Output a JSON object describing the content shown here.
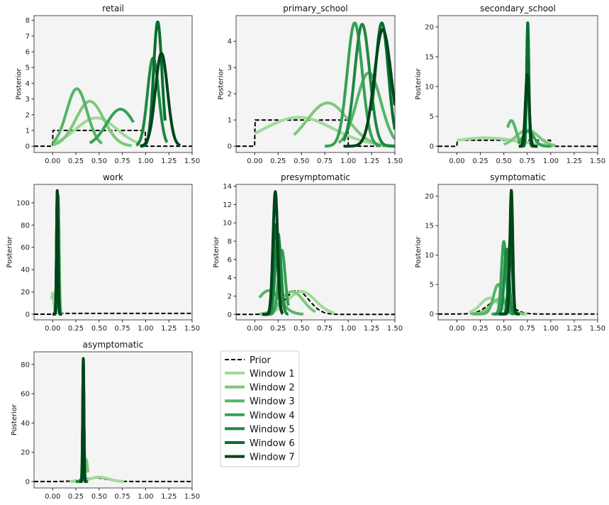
{
  "legend": {
    "prior_label": "Prior",
    "window_labels": [
      "Window 1",
      "Window 2",
      "Window 3",
      "Window 4",
      "Window 5",
      "Window 6",
      "Window 7"
    ],
    "colors": [
      "#a1d99b",
      "#7cc87a",
      "#56b567",
      "#37a055",
      "#1f8742",
      "#07702f",
      "#00441b"
    ],
    "prior_color": "#000000"
  },
  "chart_data": [
    {
      "type": "line",
      "title": "retail",
      "ylabel": "Posterior",
      "xlim": [
        -0.2,
        1.5
      ],
      "ylim": [
        -0.4,
        8.3
      ],
      "xticks": [
        "0.00",
        "0.25",
        "0.50",
        "0.75",
        "1.00",
        "1.25",
        "1.50"
      ],
      "yticks": [
        0,
        1,
        2,
        3,
        4,
        5,
        6,
        7,
        8
      ],
      "prior": {
        "dist": "uniform",
        "low": 0,
        "high": 1,
        "height": 1
      },
      "series": [
        {
          "name": "Window 1",
          "mean": 0.47,
          "sd": 0.22,
          "peak": 1.8,
          "xmin": 0,
          "xmax": 0.93
        },
        {
          "name": "Window 2",
          "mean": 0.4,
          "sd": 0.15,
          "peak": 2.85,
          "xmin": 0,
          "xmax": 0.85
        },
        {
          "name": "Window 3",
          "mean": 0.26,
          "sd": 0.11,
          "peak": 3.65,
          "xmin": 0,
          "xmax": 0.53
        },
        {
          "name": "Window 4",
          "mean": 0.73,
          "sd": 0.15,
          "peak": 2.35,
          "xmin": 0.4,
          "xmax": 0.87
        },
        {
          "name": "Window 5",
          "mean": 1.08,
          "sd": 0.06,
          "peak": 5.6,
          "xmin": 0.9,
          "xmax": 1.23
        },
        {
          "name": "Window 6",
          "mean": 1.13,
          "sd": 0.045,
          "peak": 7.9,
          "xmin": 0.95,
          "xmax": 1.21
        },
        {
          "name": "Window 7",
          "mean": 1.17,
          "sd": 0.065,
          "peak": 5.9,
          "xmin": 0.94,
          "xmax": 1.37
        }
      ]
    },
    {
      "type": "line",
      "title": "primary_school",
      "ylabel": "Posterior",
      "xlim": [
        -0.2,
        1.5
      ],
      "ylim": [
        -0.24,
        4.98
      ],
      "xticks": [
        "0.00",
        "0.25",
        "0.50",
        "0.75",
        "1.00",
        "1.25",
        "1.50"
      ],
      "yticks": [
        0,
        1,
        2,
        3,
        4
      ],
      "prior": {
        "dist": "uniform",
        "low": 0,
        "high": 1,
        "height": 1
      },
      "series": [
        {
          "name": "Window 1",
          "mean": 0.47,
          "sd": 0.37,
          "peak": 1.1,
          "xmin": 0,
          "xmax": 1.5
        },
        {
          "name": "Window 2",
          "mean": 0.78,
          "sd": 0.22,
          "peak": 1.65,
          "xmin": 0.42,
          "xmax": 1.5
        },
        {
          "name": "Window 3",
          "mean": 1.22,
          "sd": 0.13,
          "peak": 2.8,
          "xmin": 0.9,
          "xmax": 1.5
        },
        {
          "name": "Window 4",
          "mean": 1.07,
          "sd": 0.08,
          "peak": 4.7,
          "xmin": 0.75,
          "xmax": 1.35
        },
        {
          "name": "Window 5",
          "mean": 1.15,
          "sd": 0.08,
          "peak": 4.65,
          "xmin": 0.95,
          "xmax": 1.5
        },
        {
          "name": "Window 6",
          "mean": 1.36,
          "sd": 0.07,
          "peak": 4.7,
          "xmin": 1.25,
          "xmax": 1.5
        },
        {
          "name": "Window 7",
          "mean": 1.37,
          "sd": 0.09,
          "peak": 4.45,
          "xmin": 0.95,
          "xmax": 1.5
        }
      ]
    },
    {
      "type": "line",
      "title": "secondary_school",
      "ylabel": "Posterior",
      "xlim": [
        -0.2,
        1.5
      ],
      "ylim": [
        -1.05,
        21.9
      ],
      "xticks": [
        "0.00",
        "0.25",
        "0.50",
        "0.75",
        "1.00",
        "1.25",
        "1.50"
      ],
      "yticks": [
        0,
        5,
        10,
        15,
        20
      ],
      "prior": {
        "dist": "uniform",
        "low": 0,
        "high": 1,
        "height": 1
      },
      "series": [
        {
          "name": "Window 1",
          "mean": 0.3,
          "sd": 0.35,
          "peak": 1.4,
          "xmin": 0,
          "xmax": 1.05
        },
        {
          "name": "Window 2",
          "mean": 0.75,
          "sd": 0.12,
          "peak": 2.7,
          "xmin": 0.5,
          "xmax": 1.05
        },
        {
          "name": "Window 3",
          "mean": 0.58,
          "sd": 0.05,
          "peak": 4.3,
          "xmin": 0.54,
          "xmax": 0.7
        },
        {
          "name": "Window 4",
          "mean": 0.76,
          "sd": 0.06,
          "peak": 2.5,
          "xmin": 0.65,
          "xmax": 1.0
        },
        {
          "name": "Window 5",
          "mean": 0.75,
          "sd": 0.02,
          "peak": 11,
          "xmin": 0.67,
          "xmax": 0.85
        },
        {
          "name": "Window 6",
          "mean": 0.755,
          "sd": 0.012,
          "peak": 20.7,
          "xmin": 0.68,
          "xmax": 0.83
        },
        {
          "name": "Window 7",
          "mean": 0.75,
          "sd": 0.02,
          "peak": 12,
          "xmin": 0.66,
          "xmax": 0.86
        }
      ]
    },
    {
      "type": "line",
      "title": "work",
      "ylabel": "Posterior",
      "xlim": [
        -0.2,
        1.5
      ],
      "ylim": [
        -5.1,
        116.5
      ],
      "xticks": [
        "0.00",
        "0.25",
        "0.50",
        "0.75",
        "1.00",
        "1.25",
        "1.50"
      ],
      "yticks": [
        0,
        20,
        40,
        60,
        80,
        100
      ],
      "prior": {
        "dist": "uniform",
        "low": 0,
        "high": 1.5,
        "height": 0.7
      },
      "series": [
        {
          "name": "Window 1",
          "mean": 0.0,
          "sd": 0.012,
          "peak": 19,
          "xmin": -0.01,
          "xmax": 0.04
        },
        {
          "name": "Window 2",
          "mean": 0.06,
          "sd": 0.01,
          "peak": 105,
          "xmin": 0.0,
          "xmax": 0.1
        },
        {
          "name": "Window 3",
          "mean": 0.06,
          "sd": 0.009,
          "peak": 106,
          "xmin": 0.0,
          "xmax": 0.1
        },
        {
          "name": "Window 4",
          "mean": 0.055,
          "sd": 0.009,
          "peak": 107,
          "xmin": 0.0,
          "xmax": 0.1
        },
        {
          "name": "Window 5",
          "mean": 0.055,
          "sd": 0.008,
          "peak": 108,
          "xmin": 0.0,
          "xmax": 0.1
        },
        {
          "name": "Window 6",
          "mean": 0.05,
          "sd": 0.008,
          "peak": 110,
          "xmin": 0.0,
          "xmax": 0.1
        },
        {
          "name": "Window 7",
          "mean": 0.05,
          "sd": 0.008,
          "peak": 111,
          "xmin": 0.0,
          "xmax": 0.1
        }
      ]
    },
    {
      "type": "line",
      "title": "presymptomatic",
      "ylabel": "Posterior",
      "xlim": [
        -0.2,
        1.5
      ],
      "ylim": [
        -0.6,
        14.2
      ],
      "xticks": [
        "0.00",
        "0.25",
        "0.50",
        "0.75",
        "1.00",
        "1.25",
        "1.50"
      ],
      "yticks": [
        0,
        2,
        4,
        6,
        8,
        10,
        12,
        14
      ],
      "prior": {
        "dist": "normal",
        "mean": 0.45,
        "sd": 0.13,
        "peak": 2.6
      },
      "series": [
        {
          "name": "Window 1",
          "mean": 0.5,
          "sd": 0.15,
          "peak": 2.5,
          "xmin": 0.05,
          "xmax": 0.85
        },
        {
          "name": "Window 2",
          "mean": 0.4,
          "sd": 0.12,
          "peak": 2.5,
          "xmin": 0.05,
          "xmax": 0.65
        },
        {
          "name": "Window 3",
          "mean": 0.15,
          "sd": 0.12,
          "peak": 2.6,
          "xmin": 0.05,
          "xmax": 0.52
        },
        {
          "name": "Window 4",
          "mean": 0.29,
          "sd": 0.035,
          "peak": 7,
          "xmin": 0.1,
          "xmax": 0.36
        },
        {
          "name": "Window 5",
          "mean": 0.25,
          "sd": 0.03,
          "peak": 8.8,
          "xmin": 0.1,
          "xmax": 0.36
        },
        {
          "name": "Window 6",
          "mean": 0.22,
          "sd": 0.025,
          "peak": 9.8,
          "xmin": 0.08,
          "xmax": 0.3
        },
        {
          "name": "Window 7",
          "mean": 0.22,
          "sd": 0.025,
          "peak": 13.4,
          "xmin": 0.08,
          "xmax": 0.3
        }
      ]
    },
    {
      "type": "line",
      "title": "symptomatic",
      "ylabel": "Posterior",
      "xlim": [
        -0.2,
        1.5
      ],
      "ylim": [
        -1.0,
        22.0
      ],
      "xticks": [
        "0.00",
        "0.25",
        "0.50",
        "0.75",
        "1.00",
        "1.25",
        "1.50"
      ],
      "yticks": [
        0,
        5,
        10,
        15,
        20
      ],
      "prior": {
        "dist": "normal",
        "mean": 0.45,
        "sd": 0.12,
        "peak": 2.4
      },
      "series": [
        {
          "name": "Window 1",
          "mean": 0.35,
          "sd": 0.1,
          "peak": 2.7,
          "xmin": 0.13,
          "xmax": 0.75
        },
        {
          "name": "Window 2",
          "mean": 0.45,
          "sd": 0.09,
          "peak": 2.5,
          "xmin": 0.15,
          "xmax": 0.72
        },
        {
          "name": "Window 3",
          "mean": 0.44,
          "sd": 0.05,
          "peak": 5,
          "xmin": 0.17,
          "xmax": 0.6
        },
        {
          "name": "Window 4",
          "mean": 0.5,
          "sd": 0.025,
          "peak": 12.3,
          "xmin": 0.37,
          "xmax": 0.6
        },
        {
          "name": "Window 5",
          "mean": 0.53,
          "sd": 0.025,
          "peak": 11,
          "xmin": 0.4,
          "xmax": 0.62
        },
        {
          "name": "Window 6",
          "mean": 0.57,
          "sd": 0.02,
          "peak": 13,
          "xmin": 0.45,
          "xmax": 0.66
        },
        {
          "name": "Window 7",
          "mean": 0.58,
          "sd": 0.015,
          "peak": 21,
          "xmin": 0.45,
          "xmax": 0.67
        }
      ]
    },
    {
      "type": "line",
      "title": "asymptomatic",
      "ylabel": "Posterior",
      "xlim": [
        -0.2,
        1.5
      ],
      "ylim": [
        -4.4,
        88.6
      ],
      "xticks": [
        "0.00",
        "0.25",
        "0.50",
        "0.75",
        "1.00",
        "1.25",
        "1.50"
      ],
      "yticks": [
        0,
        20,
        40,
        60,
        80
      ],
      "prior": {
        "dist": "normal",
        "mean": 0.45,
        "sd": 0.13,
        "peak": 2.5
      },
      "series": [
        {
          "name": "Window 1",
          "mean": 0.5,
          "sd": 0.1,
          "peak": 3,
          "xmin": 0.18,
          "xmax": 0.77
        },
        {
          "name": "Window 2",
          "mean": 0.36,
          "sd": 0.015,
          "peak": 15,
          "xmin": 0.28,
          "xmax": 0.38
        },
        {
          "name": "Window 3",
          "mean": 0.33,
          "sd": 0.008,
          "peak": 60,
          "xmin": 0.25,
          "xmax": 0.38
        },
        {
          "name": "Window 4",
          "mean": 0.33,
          "sd": 0.007,
          "peak": 70,
          "xmin": 0.25,
          "xmax": 0.38
        },
        {
          "name": "Window 5",
          "mean": 0.33,
          "sd": 0.007,
          "peak": 78,
          "xmin": 0.25,
          "xmax": 0.38
        },
        {
          "name": "Window 6",
          "mean": 0.33,
          "sd": 0.006,
          "peak": 82,
          "xmin": 0.28,
          "xmax": 0.37
        },
        {
          "name": "Window 7",
          "mean": 0.33,
          "sd": 0.006,
          "peak": 84,
          "xmin": 0.3,
          "xmax": 0.36
        }
      ]
    }
  ]
}
